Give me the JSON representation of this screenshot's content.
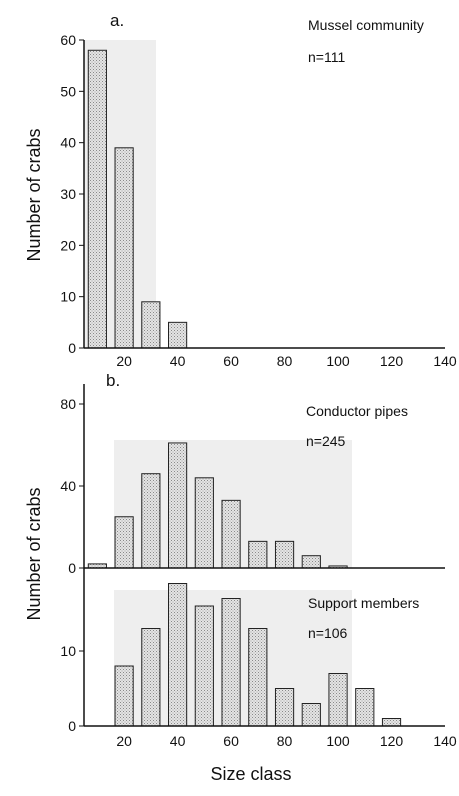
{
  "figure": {
    "ylabel": "Number of crabs",
    "xlabel": "Size class"
  },
  "chart_data": [
    {
      "type": "bar",
      "panel_label": "a.",
      "annotation": "Mussel community",
      "n_text": "n=111",
      "ylabel": "Number of crabs",
      "xlabel": "",
      "xlim": [
        5,
        140
      ],
      "ylim": [
        0,
        60
      ],
      "yticks": [
        0,
        10,
        20,
        30,
        40,
        50,
        60
      ],
      "xticks": [
        20,
        40,
        60,
        80,
        100,
        120,
        140
      ],
      "bar_width": 8,
      "series": [
        {
          "x": [
            10,
            20,
            30,
            40
          ],
          "values": [
            58,
            39,
            9,
            5
          ],
          "color": "#cfcfcf"
        }
      ]
    },
    {
      "type": "bar",
      "panel_label": "b.",
      "annotation": "Conductor pipes",
      "n_text": "n=245",
      "ylabel": "Number of crabs",
      "xlabel": "",
      "xlim": [
        5,
        140
      ],
      "ylim": [
        0,
        80
      ],
      "yticks": [
        0,
        40,
        80
      ],
      "xticks": [],
      "bar_width": 8,
      "series": [
        {
          "x": [
            10,
            20,
            30,
            40,
            50,
            60,
            70,
            80,
            90,
            100
          ],
          "values": [
            2,
            25,
            46,
            61,
            44,
            33,
            13,
            13,
            6,
            1
          ],
          "color": "#cfcfcf"
        }
      ]
    },
    {
      "type": "bar",
      "panel_label": "",
      "annotation": "Support members",
      "n_text": "n=106",
      "ylabel": "",
      "xlabel": "Size class",
      "xlim": [
        5,
        140
      ],
      "ylim": [
        0,
        20
      ],
      "yticks": [
        0,
        10
      ],
      "xticks": [
        20,
        40,
        60,
        80,
        100,
        120,
        140
      ],
      "bar_width": 8,
      "series": [
        {
          "x": [
            20,
            30,
            40,
            50,
            60,
            70,
            80,
            90,
            100,
            110,
            120
          ],
          "values": [
            8,
            13,
            19,
            16,
            17,
            13,
            5,
            3,
            7,
            5,
            1
          ],
          "color": "#cfcfcf"
        }
      ]
    }
  ]
}
